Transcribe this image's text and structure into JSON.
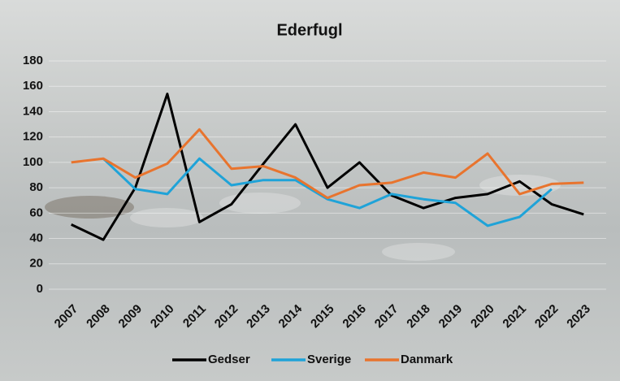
{
  "chart_data": {
    "type": "line",
    "title": "Ederfugl",
    "categories": [
      "2007",
      "2008",
      "2009",
      "2010",
      "2011",
      "2012",
      "2013",
      "2014",
      "2015",
      "2016",
      "2017",
      "2018",
      "2019",
      "2020",
      "2021",
      "2022",
      "2023"
    ],
    "series": [
      {
        "name": "Gedser",
        "color": "#000000",
        "values": [
          51,
          39,
          80,
          154,
          53,
          67,
          99,
          130,
          80,
          100,
          74,
          64,
          72,
          75,
          85,
          67,
          59
        ]
      },
      {
        "name": "Sverige",
        "color": "#1fa3d8",
        "values": [
          null,
          103,
          79,
          75,
          103,
          82,
          86,
          86,
          71,
          64,
          75,
          71,
          68,
          50,
          57,
          79,
          null
        ]
      },
      {
        "name": "Danmark",
        "color": "#e8742e",
        "values": [
          100,
          103,
          88,
          99,
          126,
          95,
          97,
          88,
          72,
          82,
          84,
          92,
          88,
          107,
          75,
          83,
          84
        ]
      }
    ],
    "ylim": [
      0,
      180
    ],
    "yticks": [
      0,
      20,
      40,
      60,
      80,
      100,
      120,
      140,
      160,
      180
    ],
    "grid": true,
    "legend": "bottom"
  }
}
